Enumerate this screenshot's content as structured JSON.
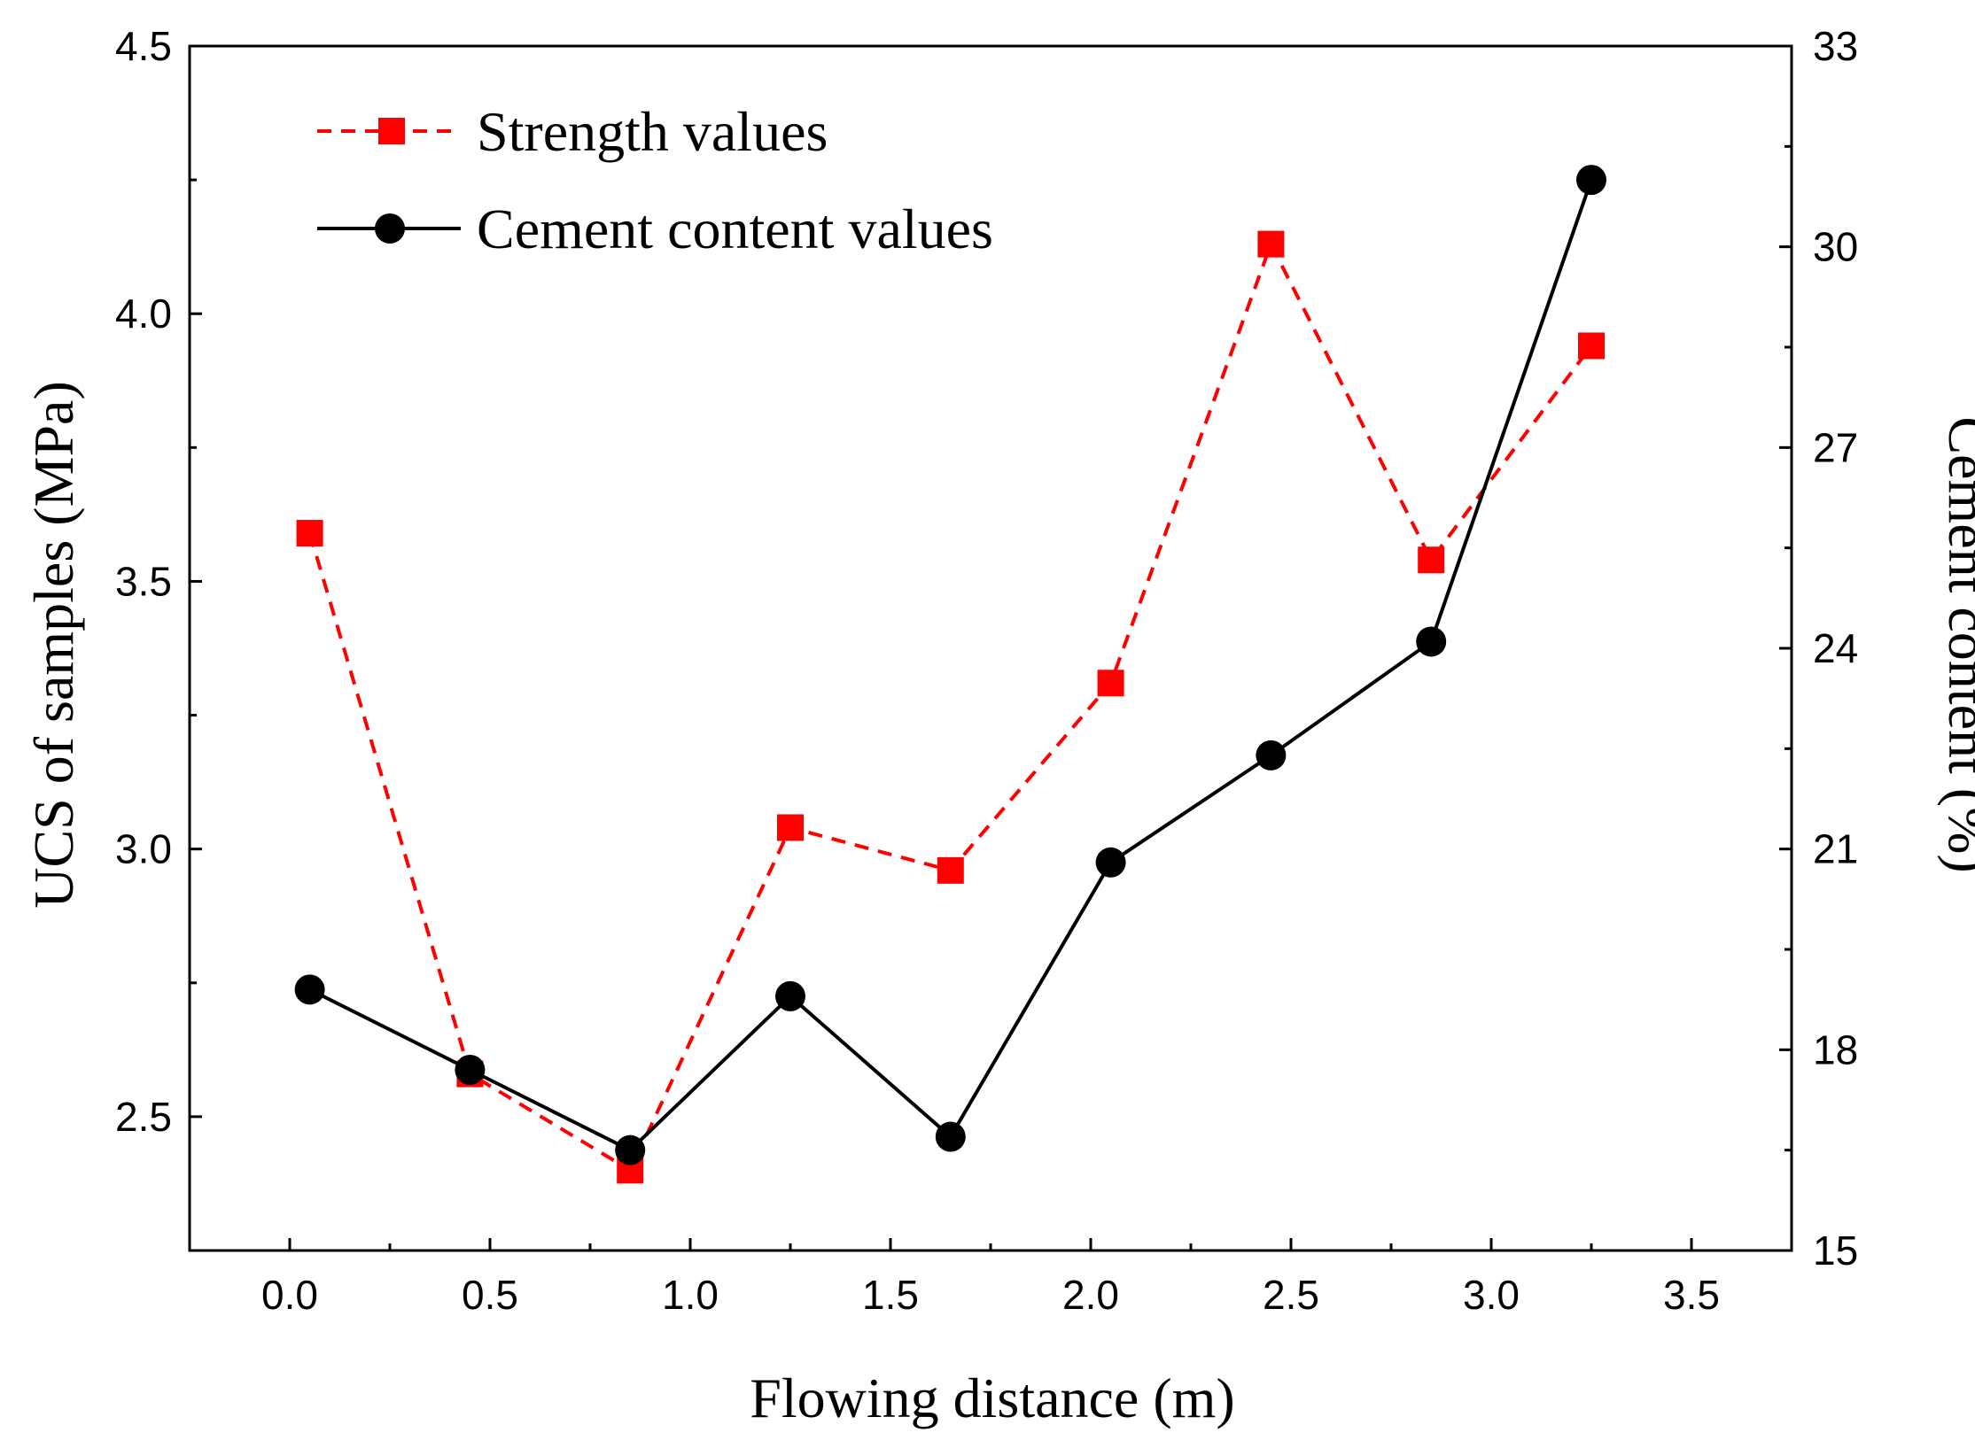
{
  "chart_data": {
    "type": "line",
    "title": "",
    "xlabel": "Flowing distance (m)",
    "ylabel": "UCS of samples (MPa)",
    "y2label": "Cement content (%)",
    "xlim": [
      -0.25,
      3.75
    ],
    "ylim": [
      2.25,
      4.5
    ],
    "y2lim": [
      15,
      33
    ],
    "xticks": [
      "0.0",
      "0.5",
      "1.0",
      "1.5",
      "2.0",
      "2.5",
      "3.0",
      "3.5"
    ],
    "yticks": [
      "2.5",
      "3.0",
      "3.5",
      "4.0",
      "4.5"
    ],
    "y2ticks": [
      "15",
      "18",
      "21",
      "24",
      "27",
      "30",
      "33"
    ],
    "x": [
      0.05,
      0.45,
      0.85,
      1.25,
      1.65,
      2.05,
      2.45,
      2.85,
      3.25
    ],
    "legend_position": "top-left",
    "series": [
      {
        "name": "Strength values",
        "axis": "left",
        "color": "#ff0000",
        "line_style": "dashed",
        "marker": "square",
        "values": [
          3.59,
          2.58,
          2.4,
          3.04,
          2.96,
          3.31,
          4.13,
          3.54,
          3.94
        ]
      },
      {
        "name": "Cement content values",
        "axis": "right",
        "color": "#000000",
        "line_style": "solid",
        "marker": "circle",
        "values": [
          18.9,
          17.7,
          16.5,
          18.8,
          16.7,
          20.8,
          22.4,
          24.1,
          31.0
        ]
      }
    ]
  }
}
